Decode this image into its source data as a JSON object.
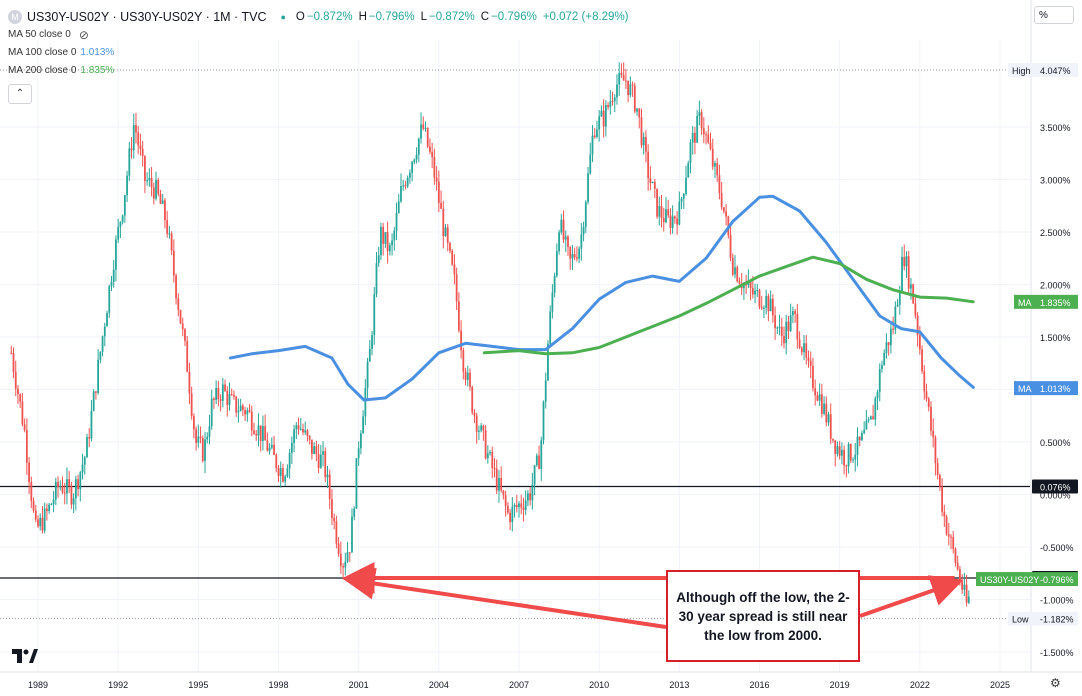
{
  "legend": {
    "symbol_icon": "M",
    "title": "US30Y-US02Y · US30Y-US02Y · 1M · TVC",
    "ohlc": [
      {
        "k": "O",
        "v": "−0.872%"
      },
      {
        "k": "H",
        "v": "−0.796%"
      },
      {
        "k": "L",
        "v": "−0.872%"
      },
      {
        "k": "C",
        "v": "−0.796%"
      },
      {
        "k": "",
        "v": "+0.072 (+8.29%)"
      }
    ],
    "ma50": {
      "label": "MA 50 close 0"
    },
    "ma100": {
      "label": "MA 100 close 0",
      "value": "1.013%"
    },
    "ma200": {
      "label": "MA 200 close 0",
      "value": "1.835%"
    }
  },
  "corner_button": "%",
  "annotation_text": "Although off the low, the 2-30 year spread is still near the low from 2000.",
  "colors": {
    "up": "#26a69a",
    "down": "#ef5350",
    "ma100": "#4a90e2",
    "ma200": "#4caf50",
    "arrow": "#f04a4a"
  },
  "chart_data": {
    "type": "candlestick",
    "title": "",
    "xlabel": "",
    "ylabel": "",
    "ylim": [
      -1.6,
      4.2
    ],
    "xlim": [
      1987.8,
      2026.3
    ],
    "y_ticks": [
      3.5,
      3.0,
      2.5,
      2.0,
      1.5,
      1.0,
      0.5,
      0.0,
      -0.5,
      -1.0,
      -1.5
    ],
    "y_tick_labels": [
      "3.500%",
      "3.000%",
      "2.500%",
      "2.000%",
      "1.500%",
      "1.000%",
      "0.500%",
      "0.000%",
      "-0.500%",
      "-1.000%",
      "-1.500%"
    ],
    "x_ticks": [
      1989,
      1992,
      1995,
      1998,
      2001,
      2004,
      2007,
      2010,
      2013,
      2016,
      2019,
      2022,
      2025
    ],
    "x_tick_labels": [
      "1989",
      "1992",
      "1995",
      "1998",
      "2001",
      "2004",
      "2007",
      "2010",
      "2013",
      "2016",
      "2019",
      "2022",
      "2025"
    ],
    "grid": true,
    "price_path": [
      [
        1988.0,
        1.35
      ],
      [
        1988.5,
        0.6
      ],
      [
        1988.9,
        -0.35
      ],
      [
        1989.3,
        -0.2
      ],
      [
        1989.8,
        0.1
      ],
      [
        1990.3,
        0.0
      ],
      [
        1990.8,
        0.4
      ],
      [
        1991.3,
        1.3
      ],
      [
        1991.8,
        2.2
      ],
      [
        1992.2,
        2.8
      ],
      [
        1992.6,
        3.55
      ],
      [
        1993.0,
        3.0
      ],
      [
        1993.4,
        2.9
      ],
      [
        1993.8,
        2.6
      ],
      [
        1994.2,
        1.9
      ],
      [
        1994.6,
        1.2
      ],
      [
        1994.9,
        0.5
      ],
      [
        1995.2,
        0.4
      ],
      [
        1995.5,
        0.85
      ],
      [
        1995.9,
        1.0
      ],
      [
        1996.3,
        0.85
      ],
      [
        1996.8,
        0.8
      ],
      [
        1997.3,
        0.6
      ],
      [
        1997.8,
        0.35
      ],
      [
        1998.2,
        0.2
      ],
      [
        1998.7,
        0.7
      ],
      [
        1999.2,
        0.45
      ],
      [
        1999.7,
        0.3
      ],
      [
        2000.1,
        -0.3
      ],
      [
        2000.4,
        -0.65
      ],
      [
        2000.7,
        -0.45
      ],
      [
        2001.0,
        0.5
      ],
      [
        2001.4,
        1.3
      ],
      [
        2001.8,
        2.5
      ],
      [
        2002.2,
        2.3
      ],
      [
        2002.6,
        2.9
      ],
      [
        2003.0,
        3.2
      ],
      [
        2003.4,
        3.5
      ],
      [
        2003.8,
        3.1
      ],
      [
        2004.2,
        2.5
      ],
      [
        2004.6,
        2.0
      ],
      [
        2004.9,
        1.3
      ],
      [
        2005.3,
        0.8
      ],
      [
        2005.8,
        0.4
      ],
      [
        2006.2,
        0.1
      ],
      [
        2006.6,
        -0.2
      ],
      [
        2007.0,
        -0.1
      ],
      [
        2007.4,
        0.0
      ],
      [
        2007.8,
        0.4
      ],
      [
        2008.1,
        1.5
      ],
      [
        2008.5,
        2.6
      ],
      [
        2008.9,
        2.2
      ],
      [
        2009.3,
        2.4
      ],
      [
        2009.8,
        3.5
      ],
      [
        2010.2,
        3.6
      ],
      [
        2010.6,
        3.9
      ],
      [
        2011.0,
        3.95
      ],
      [
        2011.4,
        3.7
      ],
      [
        2011.8,
        3.1
      ],
      [
        2012.2,
        2.7
      ],
      [
        2012.6,
        2.6
      ],
      [
        2013.0,
        2.7
      ],
      [
        2013.4,
        3.3
      ],
      [
        2013.8,
        3.6
      ],
      [
        2014.2,
        3.2
      ],
      [
        2014.6,
        2.8
      ],
      [
        2015.0,
        2.2
      ],
      [
        2015.4,
        2.0
      ],
      [
        2015.8,
        1.9
      ],
      [
        2016.3,
        1.85
      ],
      [
        2016.8,
        1.5
      ],
      [
        2017.3,
        1.7
      ],
      [
        2017.8,
        1.2
      ],
      [
        2018.3,
        0.9
      ],
      [
        2018.8,
        0.5
      ],
      [
        2019.2,
        0.35
      ],
      [
        2019.7,
        0.45
      ],
      [
        2020.2,
        0.7
      ],
      [
        2020.6,
        1.3
      ],
      [
        2021.0,
        1.6
      ],
      [
        2021.4,
        2.3
      ],
      [
        2021.8,
        1.8
      ],
      [
        2022.2,
        1.0
      ],
      [
        2022.6,
        0.3
      ],
      [
        2022.9,
        -0.2
      ],
      [
        2023.2,
        -0.5
      ],
      [
        2023.5,
        -0.8
      ],
      [
        2023.75,
        -1.05
      ],
      [
        2023.9,
        -0.95
      ]
    ],
    "series": [
      {
        "name": "MA 100",
        "values": [
          [
            1996.2,
            1.3
          ],
          [
            1997.0,
            1.34
          ],
          [
            1998.0,
            1.37
          ],
          [
            1999.0,
            1.41
          ],
          [
            2000.0,
            1.3
          ],
          [
            2000.6,
            1.05
          ],
          [
            2001.2,
            0.9
          ],
          [
            2002.0,
            0.92
          ],
          [
            2003.0,
            1.1
          ],
          [
            2004.0,
            1.35
          ],
          [
            2005.0,
            1.44
          ],
          [
            2006.0,
            1.41
          ],
          [
            2007.0,
            1.38
          ],
          [
            2008.0,
            1.38
          ],
          [
            2009.0,
            1.58
          ],
          [
            2010.0,
            1.86
          ],
          [
            2011.0,
            2.02
          ],
          [
            2012.0,
            2.08
          ],
          [
            2013.0,
            2.03
          ],
          [
            2014.0,
            2.25
          ],
          [
            2015.0,
            2.6
          ],
          [
            2016.0,
            2.83
          ],
          [
            2016.5,
            2.84
          ],
          [
            2017.5,
            2.7
          ],
          [
            2018.5,
            2.4
          ],
          [
            2019.5,
            2.05
          ],
          [
            2020.5,
            1.7
          ],
          [
            2021.3,
            1.58
          ],
          [
            2022.0,
            1.55
          ],
          [
            2022.8,
            1.3
          ],
          [
            2023.5,
            1.13
          ],
          [
            2024.0,
            1.02
          ]
        ]
      },
      {
        "name": "MA 200",
        "values": [
          [
            2005.7,
            1.35
          ],
          [
            2007.0,
            1.37
          ],
          [
            2008.0,
            1.34
          ],
          [
            2009.0,
            1.35
          ],
          [
            2010.0,
            1.4
          ],
          [
            2011.0,
            1.5
          ],
          [
            2012.0,
            1.6
          ],
          [
            2013.0,
            1.7
          ],
          [
            2014.0,
            1.82
          ],
          [
            2015.0,
            1.95
          ],
          [
            2016.0,
            2.08
          ],
          [
            2017.0,
            2.17
          ],
          [
            2018.0,
            2.26
          ],
          [
            2019.0,
            2.2
          ],
          [
            2020.0,
            2.05
          ],
          [
            2021.0,
            1.95
          ],
          [
            2022.0,
            1.88
          ],
          [
            2023.0,
            1.87
          ],
          [
            2024.0,
            1.835
          ]
        ]
      }
    ],
    "horizontal_lines": [
      {
        "value": 0.076,
        "label": "0.076%"
      },
      {
        "value": -0.795,
        "label": "-0.795%"
      }
    ],
    "high": {
      "label": "High",
      "value": "4.047%"
    },
    "low": {
      "label": "Low",
      "value": "-1.182%"
    },
    "ma_labels": [
      {
        "tag": "MA",
        "value": "1.835%",
        "y": 1.835,
        "color": "#4caf50"
      },
      {
        "tag": "MA",
        "value": "1.013%",
        "y": 1.013,
        "color": "#4a90e2"
      }
    ],
    "last_price": {
      "tag": "US30Y-US02Y",
      "value": "-0.796%",
      "y": -0.796
    },
    "arrows": [
      {
        "from": [
          2023.3,
          -0.795
        ],
        "to": [
          2000.4,
          -0.795
        ]
      },
      {
        "from": [
          2016.0,
          -1.25
        ],
        "to": [
          2000.4,
          -0.795
        ]
      },
      {
        "from": [
          2020.0,
          -1.2
        ],
        "to": [
          2023.5,
          -0.8
        ]
      }
    ]
  }
}
